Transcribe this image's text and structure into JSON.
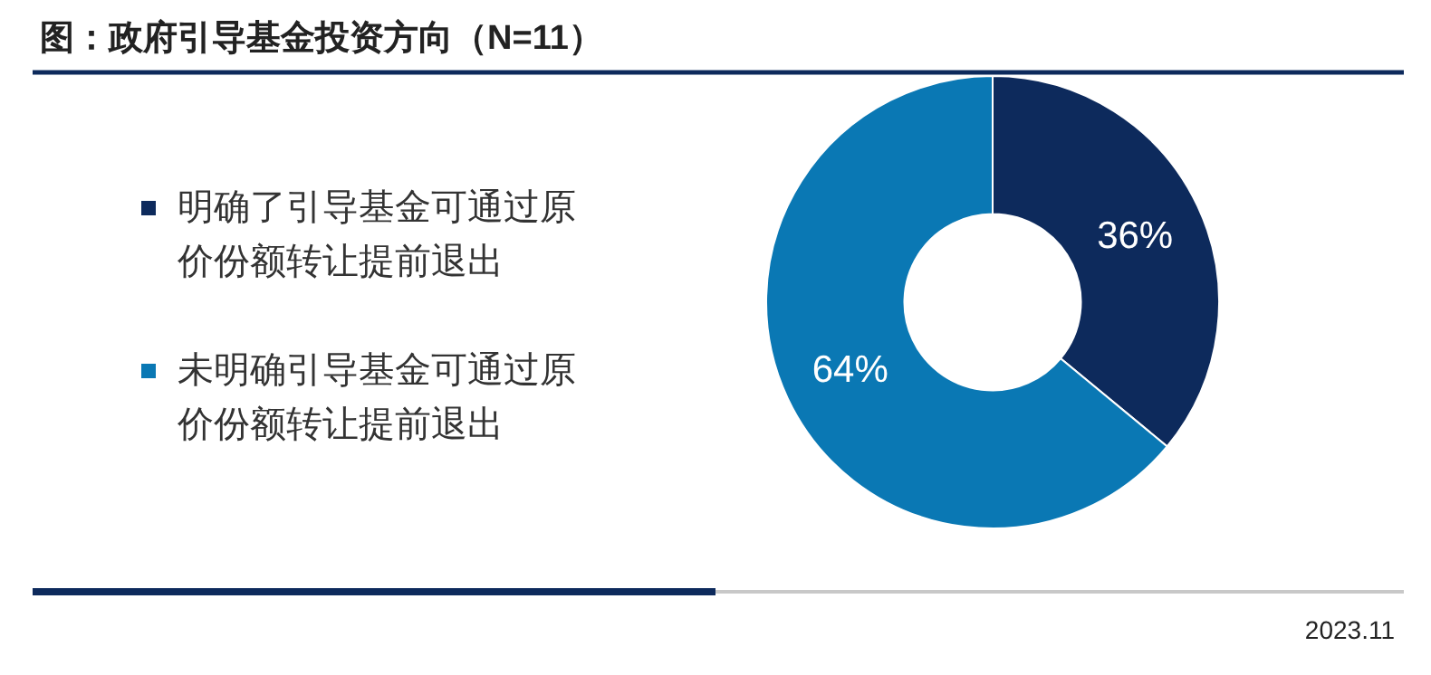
{
  "chart_data": {
    "type": "donut",
    "title": "图：政府引导基金投资方向（N=11）",
    "categories": [
      "明确了引导基金可通过原价份额转让提前退出",
      "未明确引导基金可通过原价份额转让提前退出"
    ],
    "values": [
      36,
      64
    ],
    "colors": [
      "#0d2a5c",
      "#0a78b4"
    ],
    "value_labels": [
      "36%",
      "64%"
    ],
    "legend": "left",
    "annotations": [
      "2023.11"
    ]
  }
}
